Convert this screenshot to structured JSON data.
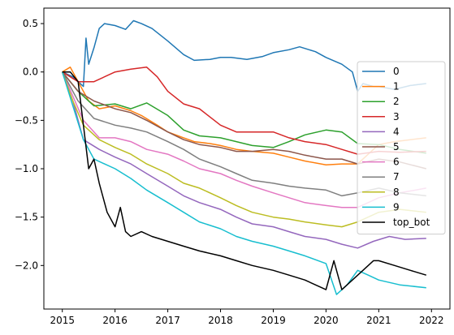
{
  "chart_data": {
    "type": "line",
    "title": "",
    "xlabel": "",
    "ylabel": "",
    "xlim": [
      2014.65,
      2022.35
    ],
    "ylim": [
      -2.45,
      0.66
    ],
    "x_ticks": [
      2015,
      2016,
      2017,
      2018,
      2019,
      2020,
      2021,
      2022
    ],
    "y_ticks": [
      0.5,
      0.0,
      -0.5,
      -1.0,
      -1.5,
      -2.0
    ],
    "y_tick_labels": [
      "0.5",
      "0.0",
      "−0.5",
      "−1.0",
      "−1.5",
      "−2.0"
    ],
    "grid": false,
    "legend_position": "right",
    "series": [
      {
        "name": "0",
        "color": "#1f77b4",
        "x": [
          2015.0,
          2015.2,
          2015.4,
          2015.45,
          2015.5,
          2015.6,
          2015.7,
          2015.8,
          2016.0,
          2016.2,
          2016.35,
          2016.5,
          2016.7,
          2017.0,
          2017.3,
          2017.5,
          2017.8,
          2018.0,
          2018.2,
          2018.5,
          2018.8,
          2019.0,
          2019.3,
          2019.5,
          2019.8,
          2020.0,
          2020.3,
          2020.5,
          2020.6,
          2020.7,
          2020.9,
          2021.0,
          2021.3,
          2021.6,
          2021.9
        ],
        "y": [
          0.0,
          -0.05,
          -0.15,
          0.35,
          0.08,
          0.25,
          0.45,
          0.5,
          0.48,
          0.44,
          0.53,
          0.5,
          0.45,
          0.32,
          0.18,
          0.12,
          0.13,
          0.15,
          0.15,
          0.13,
          0.16,
          0.2,
          0.23,
          0.26,
          0.21,
          0.15,
          0.08,
          0.0,
          -0.2,
          -0.12,
          -0.15,
          -0.15,
          -0.18,
          -0.14,
          -0.12
        ]
      },
      {
        "name": "1",
        "color": "#ff7f0e",
        "x": [
          2015.0,
          2015.15,
          2015.3,
          2015.5,
          2015.7,
          2016.0,
          2016.3,
          2016.5,
          2016.8,
          2017.0,
          2017.3,
          2017.5,
          2017.8,
          2018.0,
          2018.3,
          2018.6,
          2019.0,
          2019.3,
          2019.6,
          2020.0,
          2020.3,
          2020.6,
          2020.8,
          2021.0,
          2021.3,
          2021.6,
          2021.9
        ],
        "y": [
          0.0,
          0.05,
          -0.1,
          -0.3,
          -0.38,
          -0.35,
          -0.4,
          -0.45,
          -0.55,
          -0.62,
          -0.68,
          -0.72,
          -0.74,
          -0.76,
          -0.8,
          -0.82,
          -0.84,
          -0.88,
          -0.92,
          -0.96,
          -0.95,
          -0.95,
          -0.85,
          -0.75,
          -0.72,
          -0.7,
          -0.68
        ]
      },
      {
        "name": "2",
        "color": "#2ca02c",
        "x": [
          2015.0,
          2015.3,
          2015.6,
          2016.0,
          2016.3,
          2016.6,
          2017.0,
          2017.3,
          2017.6,
          2018.0,
          2018.3,
          2018.6,
          2019.0,
          2019.3,
          2019.6,
          2020.0,
          2020.3,
          2020.6,
          2021.0,
          2021.4,
          2021.9
        ],
        "y": [
          0.0,
          -0.2,
          -0.35,
          -0.33,
          -0.38,
          -0.32,
          -0.45,
          -0.6,
          -0.66,
          -0.68,
          -0.72,
          -0.76,
          -0.78,
          -0.72,
          -0.65,
          -0.6,
          -0.62,
          -0.74,
          -0.75,
          -0.8,
          -0.84
        ]
      },
      {
        "name": "3",
        "color": "#d62728",
        "x": [
          2015.0,
          2015.3,
          2015.6,
          2016.0,
          2016.3,
          2016.6,
          2016.8,
          2017.0,
          2017.3,
          2017.6,
          2018.0,
          2018.3,
          2018.6,
          2019.0,
          2019.3,
          2019.6,
          2020.0,
          2020.3,
          2020.6,
          2021.0,
          2021.4,
          2021.9
        ],
        "y": [
          0.0,
          -0.1,
          -0.1,
          0.0,
          0.03,
          0.05,
          -0.05,
          -0.2,
          -0.33,
          -0.38,
          -0.55,
          -0.62,
          -0.62,
          -0.62,
          -0.68,
          -0.72,
          -0.75,
          -0.8,
          -0.85,
          -0.82,
          -0.83,
          -0.82
        ]
      },
      {
        "name": "4",
        "color": "#9467bd",
        "x": [
          2015.0,
          2015.2,
          2015.4,
          2015.7,
          2016.0,
          2016.3,
          2016.6,
          2017.0,
          2017.3,
          2017.6,
          2018.0,
          2018.3,
          2018.6,
          2019.0,
          2019.3,
          2019.6,
          2020.0,
          2020.3,
          2020.6,
          2020.9,
          2021.2,
          2021.5,
          2021.9
        ],
        "y": [
          0.0,
          -0.3,
          -0.7,
          -0.8,
          -0.88,
          -0.95,
          -1.05,
          -1.18,
          -1.28,
          -1.35,
          -1.42,
          -1.5,
          -1.57,
          -1.6,
          -1.65,
          -1.7,
          -1.73,
          -1.78,
          -1.82,
          -1.75,
          -1.7,
          -1.73,
          -1.72
        ]
      },
      {
        "name": "5",
        "color": "#8c564b",
        "x": [
          2015.0,
          2015.3,
          2015.6,
          2016.0,
          2016.3,
          2016.6,
          2017.0,
          2017.3,
          2017.6,
          2018.0,
          2018.3,
          2018.6,
          2019.0,
          2019.3,
          2019.6,
          2020.0,
          2020.3,
          2020.6,
          2021.0,
          2021.4,
          2021.9
        ],
        "y": [
          0.0,
          -0.2,
          -0.3,
          -0.38,
          -0.42,
          -0.5,
          -0.62,
          -0.7,
          -0.75,
          -0.78,
          -0.82,
          -0.82,
          -0.8,
          -0.82,
          -0.86,
          -0.9,
          -0.9,
          -0.95,
          -0.9,
          -0.93,
          -1.0
        ]
      },
      {
        "name": "6",
        "color": "#e377c2",
        "x": [
          2015.0,
          2015.2,
          2015.4,
          2015.7,
          2016.0,
          2016.3,
          2016.6,
          2017.0,
          2017.3,
          2017.6,
          2018.0,
          2018.3,
          2018.6,
          2019.0,
          2019.3,
          2019.6,
          2020.0,
          2020.3,
          2020.6,
          2021.0,
          2021.4,
          2021.9
        ],
        "y": [
          0.0,
          -0.25,
          -0.5,
          -0.68,
          -0.68,
          -0.72,
          -0.8,
          -0.85,
          -0.92,
          -1.0,
          -1.05,
          -1.12,
          -1.18,
          -1.25,
          -1.3,
          -1.35,
          -1.38,
          -1.4,
          -1.4,
          -1.3,
          -1.25,
          -1.2
        ]
      },
      {
        "name": "7",
        "color": "#7f7f7f",
        "x": [
          2015.0,
          2015.3,
          2015.6,
          2016.0,
          2016.3,
          2016.6,
          2017.0,
          2017.3,
          2017.6,
          2018.0,
          2018.3,
          2018.6,
          2019.0,
          2019.3,
          2019.6,
          2020.0,
          2020.3,
          2020.6,
          2021.0,
          2021.4,
          2021.9
        ],
        "y": [
          0.0,
          -0.3,
          -0.48,
          -0.55,
          -0.58,
          -0.62,
          -0.72,
          -0.8,
          -0.9,
          -0.98,
          -1.05,
          -1.12,
          -1.15,
          -1.18,
          -1.2,
          -1.22,
          -1.28,
          -1.25,
          -1.2,
          -1.25,
          -1.28
        ]
      },
      {
        "name": "8",
        "color": "#bcbd22",
        "x": [
          2015.0,
          2015.2,
          2015.4,
          2015.7,
          2016.0,
          2016.3,
          2016.6,
          2017.0,
          2017.3,
          2017.6,
          2018.0,
          2018.3,
          2018.6,
          2019.0,
          2019.3,
          2019.6,
          2020.0,
          2020.3,
          2020.6,
          2021.0,
          2021.4,
          2021.9
        ],
        "y": [
          0.0,
          -0.3,
          -0.55,
          -0.7,
          -0.78,
          -0.85,
          -0.95,
          -1.05,
          -1.15,
          -1.2,
          -1.3,
          -1.38,
          -1.45,
          -1.5,
          -1.52,
          -1.55,
          -1.58,
          -1.6,
          -1.55,
          -1.45,
          -1.42,
          -1.45
        ]
      },
      {
        "name": "9",
        "color": "#17becf",
        "x": [
          2015.0,
          2015.2,
          2015.4,
          2015.6,
          2015.8,
          2016.0,
          2016.3,
          2016.6,
          2017.0,
          2017.3,
          2017.6,
          2018.0,
          2018.3,
          2018.6,
          2019.0,
          2019.3,
          2019.6,
          2020.0,
          2020.2,
          2020.4,
          2020.6,
          2020.8,
          2021.0,
          2021.4,
          2021.9
        ],
        "y": [
          0.0,
          -0.35,
          -0.7,
          -0.9,
          -0.95,
          -1.0,
          -1.1,
          -1.22,
          -1.35,
          -1.45,
          -1.55,
          -1.62,
          -1.7,
          -1.75,
          -1.8,
          -1.85,
          -1.9,
          -1.98,
          -2.3,
          -2.2,
          -2.05,
          -2.1,
          -2.15,
          -2.2,
          -2.23
        ]
      },
      {
        "name": "top_bot",
        "color": "#000000",
        "x": [
          2015.0,
          2015.15,
          2015.3,
          2015.4,
          2015.5,
          2015.6,
          2015.7,
          2015.85,
          2016.0,
          2016.1,
          2016.2,
          2016.3,
          2016.5,
          2016.7,
          2017.0,
          2017.3,
          2017.6,
          2018.0,
          2018.3,
          2018.6,
          2019.0,
          2019.3,
          2019.6,
          2020.0,
          2020.15,
          2020.3,
          2020.5,
          2020.7,
          2020.9,
          2021.0,
          2021.3,
          2021.6,
          2021.9
        ],
        "y": [
          0.0,
          0.0,
          -0.1,
          -0.55,
          -1.0,
          -0.9,
          -1.15,
          -1.45,
          -1.6,
          -1.4,
          -1.65,
          -1.7,
          -1.65,
          -1.7,
          -1.75,
          -1.8,
          -1.85,
          -1.9,
          -1.95,
          -2.0,
          -2.05,
          -2.1,
          -2.15,
          -2.25,
          -1.95,
          -2.25,
          -2.15,
          -2.05,
          -1.95,
          -1.95,
          -2.0,
          -2.05,
          -2.1
        ]
      }
    ]
  }
}
